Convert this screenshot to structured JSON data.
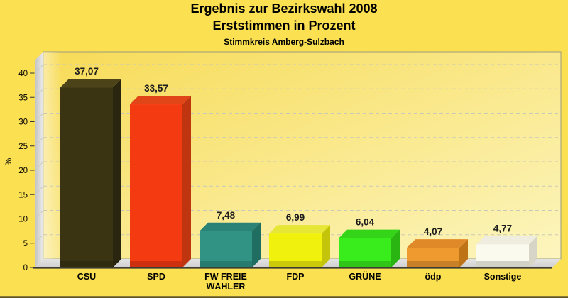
{
  "title": {
    "line1": "Ergebnis zur Bezirkswahl 2008",
    "line2": "Erststimmen in Prozent",
    "subtitle": "Stimmkreis Amberg-Sulzbach"
  },
  "chart_data": {
    "type": "bar",
    "style": "3d-column",
    "title": "Ergebnis zur Bezirkswahl 2008 — Erststimmen in Prozent",
    "subtitle": "Stimmkreis Amberg-Sulzbach",
    "ylabel": "%",
    "xlabel": "",
    "ylim": [
      0,
      42
    ],
    "y_ticks": [
      0,
      5,
      10,
      15,
      20,
      25,
      30,
      35,
      40
    ],
    "grid": "dashed-horizontal",
    "legend": "none",
    "categories": [
      "CSU",
      "SPD",
      "FW FREIE WÄHLER",
      "FDP",
      "GRÜNE",
      "ödp",
      "Sonstige"
    ],
    "values": [
      37.07,
      33.57,
      7.48,
      6.99,
      6.04,
      4.07,
      4.77
    ],
    "bars": [
      {
        "label": "CSU",
        "label_lines": [
          "CSU"
        ],
        "value": 37.07,
        "value_label": "37,07",
        "front": "#3B3413",
        "top": "#4C4318",
        "side": "#2A250E"
      },
      {
        "label": "SPD",
        "label_lines": [
          "SPD"
        ],
        "value": 33.57,
        "value_label": "33,57",
        "front": "#F33A11",
        "top": "#E04617",
        "side": "#BF3510"
      },
      {
        "label": "FW FREIE WÄHLER",
        "label_lines": [
          "FW FREIE",
          "WÄHLER"
        ],
        "value": 7.48,
        "value_label": "7,48",
        "front": "#309384",
        "top": "#2A8376",
        "side": "#206E62"
      },
      {
        "label": "FDP",
        "label_lines": [
          "FDP"
        ],
        "value": 6.99,
        "value_label": "6,99",
        "front": "#F1F10E",
        "top": "#E6E636",
        "side": "#C4C40B"
      },
      {
        "label": "GRÜNE",
        "label_lines": [
          "GRÜNE"
        ],
        "value": 6.04,
        "value_label": "6,04",
        "front": "#39EC1C",
        "top": "#34D418",
        "side": "#2BB513"
      },
      {
        "label": "ödp",
        "label_lines": [
          "ödp"
        ],
        "value": 4.07,
        "value_label": "4,07",
        "front": "#EF9A2F",
        "top": "#E08928",
        "side": "#BE7316"
      },
      {
        "label": "Sonstige",
        "label_lines": [
          "Sonstige"
        ],
        "value": 4.77,
        "value_label": "4,77",
        "front": "#FBFAEE",
        "top": "#EFEDE0",
        "side": "#D7D5C6"
      }
    ],
    "colors": {
      "background": "#FBE052",
      "plot_bg_from": "#F7DB57",
      "plot_bg_to": "#FCF5BE",
      "plot_border": "#9C9C7E",
      "wall_from": "#C2C2C2",
      "wall_to": "#ECECEC",
      "floor_from": "#E4E4E4",
      "floor_to": "#CFCFCF",
      "grid": "#C9C9BA",
      "axis_line": "#3C3C34",
      "tick_text": "#000000",
      "value_text": "#1C1C1C",
      "bottom_edge": "#5C5226"
    }
  }
}
